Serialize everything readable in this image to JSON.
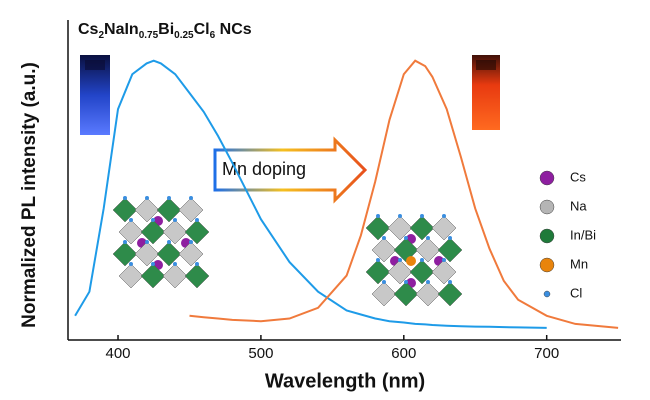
{
  "chart_data": {
    "type": "line",
    "title": [
      {
        "text": "Cs"
      },
      {
        "text": "2",
        "sub": true
      },
      {
        "text": "NaIn"
      },
      {
        "text": "0.75",
        "sub": true
      },
      {
        "text": "Bi"
      },
      {
        "text": "0.25",
        "sub": true
      },
      {
        "text": "Cl"
      },
      {
        "text": "6",
        "sub": true
      },
      {
        "text": " NCs"
      }
    ],
    "x_label": "Wavelength (nm)",
    "y_label": "Normalized PL intensity (a.u.)",
    "annotation": "Mn doping",
    "x": [
      370,
      380,
      390,
      400,
      410,
      420,
      425,
      430,
      440,
      450,
      460,
      470,
      480,
      500,
      520,
      540,
      560,
      570,
      580,
      590,
      600,
      608,
      615,
      620,
      630,
      640,
      650,
      660,
      670,
      680,
      700,
      720,
      750
    ],
    "series": [
      {
        "color": "#1e9be8",
        "values": [
          0.05,
          0.14,
          0.45,
          0.82,
          0.95,
          0.99,
          1.0,
          0.99,
          0.95,
          0.88,
          0.81,
          0.72,
          0.62,
          0.41,
          0.25,
          0.14,
          0.07,
          0.055,
          0.04,
          0.03,
          0.025,
          0.02,
          0.018,
          0.016,
          0.013,
          0.011,
          0.01,
          0.009,
          0.008,
          0.007,
          0.005,
          null,
          null
        ]
      },
      {
        "color": "#f07a3c",
        "values": [
          null,
          null,
          null,
          null,
          null,
          null,
          null,
          null,
          null,
          0.05,
          0.045,
          0.04,
          0.035,
          0.03,
          0.04,
          0.08,
          0.2,
          0.35,
          0.55,
          0.78,
          0.95,
          1.0,
          0.98,
          0.94,
          0.82,
          0.64,
          0.45,
          0.3,
          0.18,
          0.11,
          0.05,
          0.02,
          0.005
        ]
      }
    ],
    "xlim": [
      365,
      752
    ],
    "xticks": [
      400,
      500,
      600,
      700
    ],
    "ylim": [
      -0.04,
      1.04
    ],
    "atom_legend": [
      {
        "label": "Cs",
        "color": "#8e1fa0"
      },
      {
        "label": "Na",
        "color": "#b5b5b5"
      },
      {
        "label": "In/Bi",
        "color": "#1f7a3a"
      },
      {
        "label": "Mn",
        "color": "#e8840c"
      },
      {
        "label": "Cl",
        "color": "#3a8ee0"
      }
    ]
  }
}
